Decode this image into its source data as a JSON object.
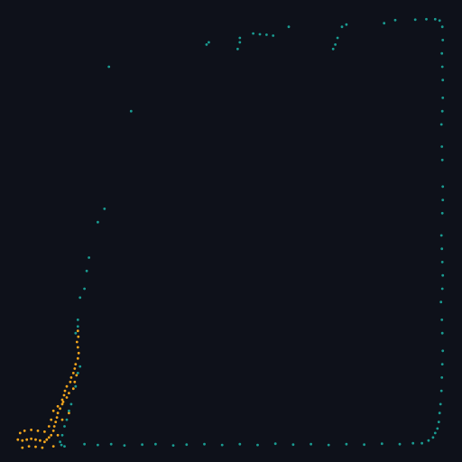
{
  "chart_data": {
    "type": "scatter",
    "xlim": [
      0,
      1
    ],
    "ylim": [
      0,
      1
    ],
    "axes_visible": false,
    "grid": false,
    "legend": "none",
    "background": "#0e111a",
    "series": [
      {
        "color": "#f5a61c",
        "points": [
          [
            0.155,
            0.275
          ],
          [
            0.156,
            0.262
          ],
          [
            0.153,
            0.25
          ],
          [
            0.155,
            0.238
          ],
          [
            0.157,
            0.225
          ],
          [
            0.155,
            0.213
          ],
          [
            0.15,
            0.2
          ],
          [
            0.148,
            0.19
          ],
          [
            0.145,
            0.18
          ],
          [
            0.14,
            0.17
          ],
          [
            0.138,
            0.16
          ],
          [
            0.13,
            0.15
          ],
          [
            0.126,
            0.14
          ],
          [
            0.124,
            0.13
          ],
          [
            0.12,
            0.12
          ],
          [
            0.12,
            0.11
          ],
          [
            0.115,
            0.1
          ],
          [
            0.11,
            0.09
          ],
          [
            0.108,
            0.08
          ],
          [
            0.105,
            0.07
          ],
          [
            0.102,
            0.06
          ],
          [
            0.1,
            0.05
          ],
          [
            0.095,
            0.04
          ],
          [
            0.09,
            0.035
          ],
          [
            0.085,
            0.03
          ],
          [
            0.08,
            0.025
          ],
          [
            0.07,
            0.028
          ],
          [
            0.06,
            0.03
          ],
          [
            0.05,
            0.032
          ],
          [
            0.04,
            0.03
          ],
          [
            0.03,
            0.028
          ],
          [
            0.02,
            0.03
          ],
          [
            0.025,
            0.045
          ],
          [
            0.035,
            0.05
          ],
          [
            0.05,
            0.052
          ],
          [
            0.065,
            0.05
          ],
          [
            0.08,
            0.048
          ],
          [
            0.09,
            0.06
          ],
          [
            0.095,
            0.075
          ],
          [
            0.1,
            0.095
          ],
          [
            0.11,
            0.105
          ],
          [
            0.122,
            0.115
          ],
          [
            0.13,
            0.125
          ],
          [
            0.135,
            0.135
          ],
          [
            0.145,
            0.145
          ],
          [
            0.148,
            0.16
          ],
          [
            0.152,
            0.175
          ],
          [
            0.045,
            0.015
          ],
          [
            0.03,
            0.012
          ],
          [
            0.06,
            0.014
          ],
          [
            0.075,
            0.012
          ],
          [
            0.1,
            0.015
          ],
          [
            0.11,
            0.04
          ],
          [
            0.12,
            0.075
          ],
          [
            0.135,
            0.09
          ]
        ]
      },
      {
        "color": "#1a9c92",
        "points": [
          [
            0.155,
            0.3
          ],
          [
            0.155,
            0.285
          ],
          [
            0.15,
            0.27
          ],
          [
            0.16,
            0.195
          ],
          [
            0.155,
            0.18
          ],
          [
            0.15,
            0.15
          ],
          [
            0.14,
            0.11
          ],
          [
            0.135,
            0.095
          ],
          [
            0.13,
            0.075
          ],
          [
            0.125,
            0.06
          ],
          [
            0.12,
            0.04
          ],
          [
            0.115,
            0.025
          ],
          [
            0.118,
            0.018
          ],
          [
            0.125,
            0.015
          ],
          [
            0.16,
            0.35
          ],
          [
            0.17,
            0.37
          ],
          [
            0.175,
            0.41
          ],
          [
            0.18,
            0.44
          ],
          [
            0.2,
            0.52
          ],
          [
            0.215,
            0.55
          ],
          [
            0.275,
            0.77
          ],
          [
            0.225,
            0.87
          ],
          [
            0.445,
            0.92
          ],
          [
            0.45,
            0.925
          ],
          [
            0.515,
            0.91
          ],
          [
            0.52,
            0.925
          ],
          [
            0.52,
            0.935
          ],
          [
            0.55,
            0.945
          ],
          [
            0.565,
            0.943
          ],
          [
            0.58,
            0.942
          ],
          [
            0.595,
            0.94
          ],
          [
            0.63,
            0.96
          ],
          [
            0.73,
            0.91
          ],
          [
            0.735,
            0.92
          ],
          [
            0.74,
            0.935
          ],
          [
            0.75,
            0.96
          ],
          [
            0.76,
            0.965
          ],
          [
            0.845,
            0.968
          ],
          [
            0.87,
            0.975
          ],
          [
            0.915,
            0.976
          ],
          [
            0.94,
            0.977
          ],
          [
            0.96,
            0.977
          ],
          [
            0.97,
            0.974
          ],
          [
            0.976,
            0.96
          ],
          [
            0.977,
            0.93
          ],
          [
            0.975,
            0.9
          ],
          [
            0.976,
            0.87
          ],
          [
            0.977,
            0.84
          ],
          [
            0.977,
            0.8
          ],
          [
            0.976,
            0.77
          ],
          [
            0.974,
            0.74
          ],
          [
            0.975,
            0.69
          ],
          [
            0.976,
            0.66
          ],
          [
            0.977,
            0.6
          ],
          [
            0.977,
            0.57
          ],
          [
            0.976,
            0.54
          ],
          [
            0.974,
            0.49
          ],
          [
            0.975,
            0.46
          ],
          [
            0.976,
            0.43
          ],
          [
            0.977,
            0.4
          ],
          [
            0.976,
            0.37
          ],
          [
            0.973,
            0.34
          ],
          [
            0.975,
            0.3
          ],
          [
            0.976,
            0.27
          ],
          [
            0.977,
            0.23
          ],
          [
            0.976,
            0.2
          ],
          [
            0.975,
            0.17
          ],
          [
            0.974,
            0.14
          ],
          [
            0.972,
            0.11
          ],
          [
            0.97,
            0.09
          ],
          [
            0.968,
            0.07
          ],
          [
            0.965,
            0.055
          ],
          [
            0.96,
            0.045
          ],
          [
            0.955,
            0.035
          ],
          [
            0.945,
            0.028
          ],
          [
            0.93,
            0.022
          ],
          [
            0.17,
            0.02
          ],
          [
            0.2,
            0.018
          ],
          [
            0.23,
            0.02
          ],
          [
            0.26,
            0.017
          ],
          [
            0.3,
            0.019
          ],
          [
            0.33,
            0.02
          ],
          [
            0.37,
            0.017
          ],
          [
            0.4,
            0.019
          ],
          [
            0.44,
            0.02
          ],
          [
            0.48,
            0.018
          ],
          [
            0.52,
            0.02
          ],
          [
            0.56,
            0.018
          ],
          [
            0.6,
            0.021
          ],
          [
            0.64,
            0.019
          ],
          [
            0.68,
            0.02
          ],
          [
            0.72,
            0.018
          ],
          [
            0.76,
            0.02
          ],
          [
            0.8,
            0.019
          ],
          [
            0.84,
            0.021
          ],
          [
            0.88,
            0.02
          ],
          [
            0.91,
            0.022
          ]
        ]
      }
    ]
  }
}
